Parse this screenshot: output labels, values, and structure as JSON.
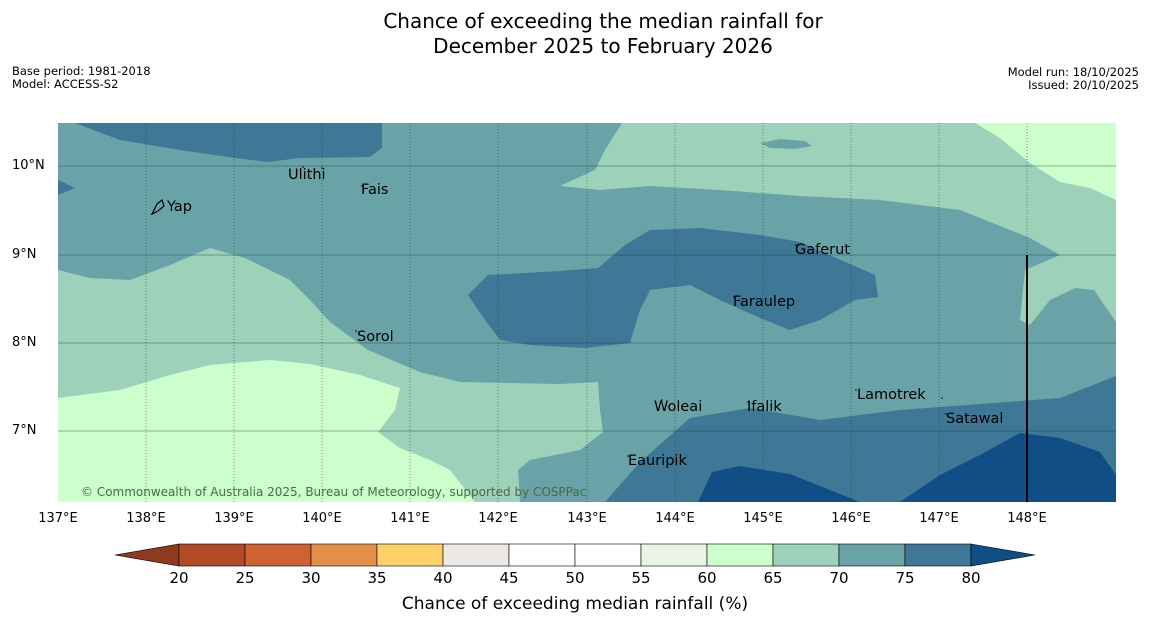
{
  "title": {
    "line1": "Chance of exceeding the median rainfall for",
    "line2": "December 2025 to February 2026"
  },
  "meta": {
    "base_period": "Base period: 1981-2018",
    "model": "Model: ACCESS-S2",
    "model_run": "Model run: 18/10/2025",
    "issued": "Issued: 20/10/2025"
  },
  "axes": {
    "lat_labels": [
      "10°N",
      "9°N",
      "8°N",
      "7°N"
    ],
    "lon_labels": [
      "137°E",
      "138°E",
      "139°E",
      "140°E",
      "141°E",
      "142°E",
      "143°E",
      "144°E",
      "145°E",
      "146°E",
      "147°E",
      "148°E"
    ]
  },
  "places": [
    "Ulithi",
    "Fais",
    "Yap",
    "Gaferut",
    "Faraulep",
    "Sorol",
    "Lamotrek",
    "Woleai",
    "Ifalik",
    "Satawal",
    "Eauripik"
  ],
  "copyright": "© Commonwealth of Australia 2025, Bureau of Meteorology, supported by COSPPac",
  "colorbar": {
    "title": "Chance of exceeding median rainfall (%)",
    "ticks": [
      "20",
      "25",
      "30",
      "35",
      "40",
      "45",
      "50",
      "55",
      "60",
      "65",
      "70",
      "75",
      "80"
    ],
    "colors": [
      "#8f3a1f",
      "#b34a28",
      "#cf6232",
      "#e3914a",
      "#fdd06a",
      "#ece8e3",
      "#ffffff",
      "#ffffff",
      "#eaf4e6",
      "#ccffcc",
      "#9ed1b9",
      "#6aa3a7",
      "#3f7796",
      "#124e86"
    ]
  },
  "legend_colors": {
    "c60": "#ccffcc",
    "c65": "#9ed1b9",
    "c70": "#6aa3a7",
    "c75": "#3f7796",
    "c80": "#124e86"
  }
}
